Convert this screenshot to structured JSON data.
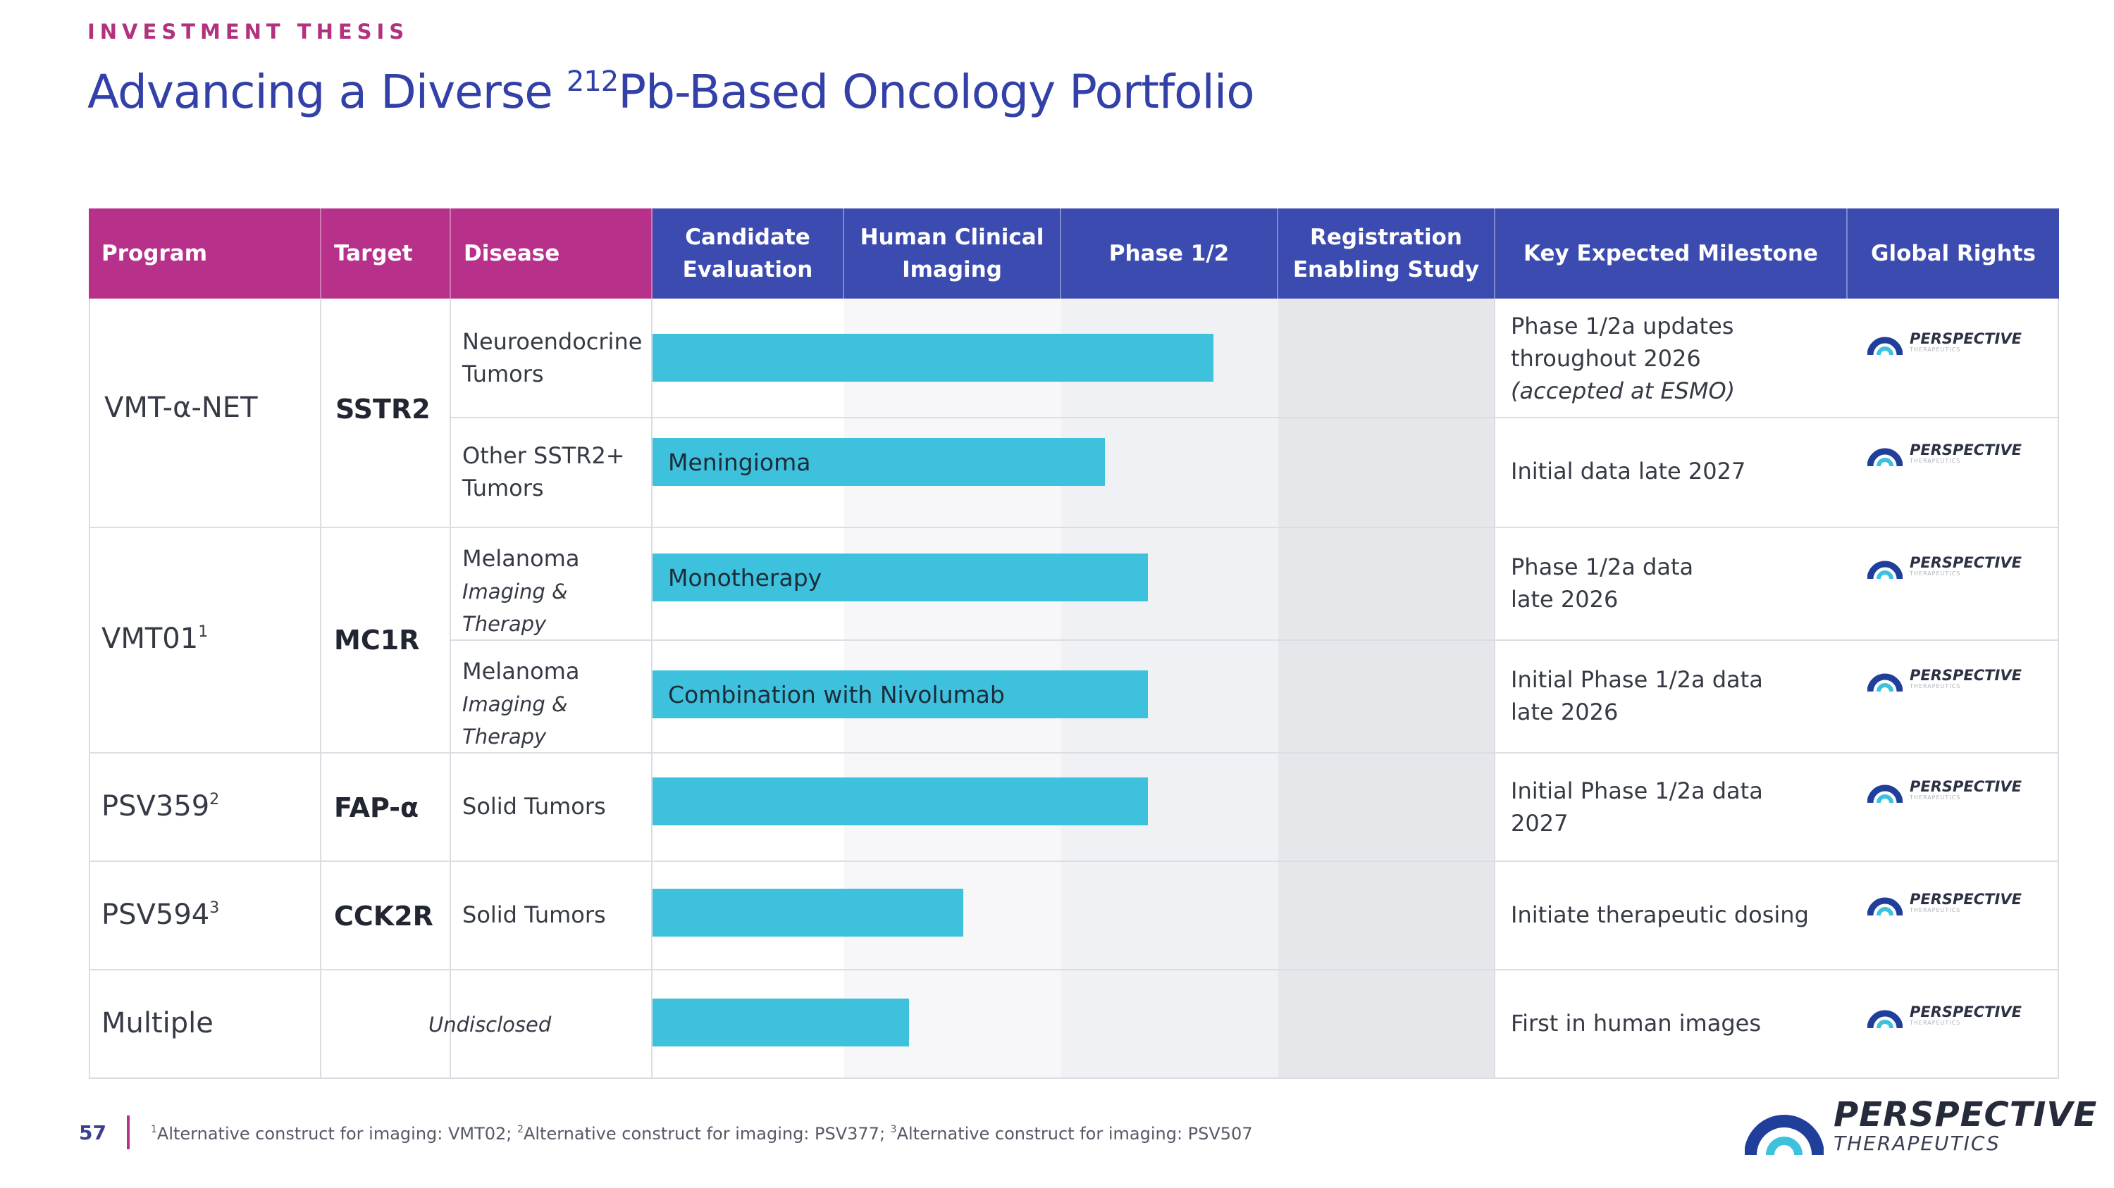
{
  "header": {
    "eyebrow": "INVESTMENT THESIS",
    "title_prefix": "Advancing a Diverse ",
    "title_sup": "212",
    "title_suffix": "Pb-Based Oncology Portfolio"
  },
  "table": {
    "columns": {
      "program": "Program",
      "target": "Target",
      "disease": "Disease",
      "candidate_line1": "Candidate",
      "candidate_line2": "Evaluation",
      "imaging_line1": "Human Clinical",
      "imaging_line2": "Imaging",
      "phase": "Phase 1/2",
      "registration_line1": "Registration",
      "registration_line2": "Enabling Study",
      "milestone": "Key Expected Milestone",
      "rights": "Global Rights"
    },
    "stage_order": [
      "Candidate Evaluation",
      "Human Clinical Imaging",
      "Phase 1/2",
      "Registration Enabling Study"
    ],
    "programs": [
      {
        "name": "VMT-α-NET",
        "sup": "",
        "target": "SSTR2"
      },
      {
        "name": "VMT01",
        "sup": "1",
        "target": "MC1R"
      },
      {
        "name": "PSV359",
        "sup": "2",
        "target": "FAP-α"
      },
      {
        "name": "PSV594",
        "sup": "3",
        "target": "CCK2R"
      },
      {
        "name": "Multiple",
        "sup": "",
        "target": "Undisclosed"
      }
    ],
    "rows": [
      {
        "disease_line1": "Neuroendocrine",
        "disease_line2": "Tumors",
        "bar_label": "",
        "progress_stage": 2.7,
        "milestone_line1": "Phase 1/2a updates",
        "milestone_line2": "throughout 2026",
        "milestone_line3": "(accepted at ESMO)",
        "rights": "PERSPECTIVE"
      },
      {
        "disease_line1": "Other SSTR2+",
        "disease_line2": "Tumors",
        "bar_label": "Meningioma",
        "progress_stage": 2.2,
        "milestone_line1": "Initial data late 2027",
        "rights": "PERSPECTIVE"
      },
      {
        "disease_line1": "Melanoma",
        "disease_sub1": "Imaging &",
        "disease_sub2": "Therapy",
        "bar_label": "Monotherapy",
        "progress_stage": 2.4,
        "milestone_line1": "Phase 1/2a data",
        "milestone_line2": "late 2026",
        "rights": "PERSPECTIVE"
      },
      {
        "disease_line1": "Melanoma",
        "disease_sub1": "Imaging &",
        "disease_sub2": "Therapy",
        "bar_label": "Combination with Nivolumab",
        "progress_stage": 2.4,
        "milestone_line1": "Initial Phase 1/2a data",
        "milestone_line2": "late 2026",
        "rights": "PERSPECTIVE"
      },
      {
        "disease_line1": "Solid Tumors",
        "bar_label": "",
        "progress_stage": 2.4,
        "milestone_line1": "Initial Phase 1/2a data",
        "milestone_line2": "2027",
        "rights": "PERSPECTIVE"
      },
      {
        "disease_line1": "Solid Tumors",
        "bar_label": "",
        "progress_stage": 1.55,
        "milestone_line1": "Initiate therapeutic dosing",
        "rights": "PERSPECTIVE"
      },
      {
        "disease_line1": "",
        "bar_label": "",
        "progress_stage": 1.3,
        "milestone_line1": "First in human images",
        "rights": "PERSPECTIVE"
      }
    ]
  },
  "footer": {
    "page_number": "57",
    "fn1_sup": "1",
    "fn1": "Alternative construct for imaging: VMT02; ",
    "fn2_sup": "2",
    "fn2": "Alternative construct for imaging: PSV377; ",
    "fn3_sup": "3",
    "fn3": "Alternative construct for imaging: PSV507"
  },
  "brand": {
    "name": "PERSPECTIVE",
    "tagline": "THERAPEUTICS",
    "logo_small_tagline": "THERAPEUTICS"
  },
  "colors": {
    "eyebrow": "#b2327f",
    "title": "#3240a8",
    "header_pink": "#b7318b",
    "header_blue": "#3c4bb0",
    "bar": "#3ec1dc"
  }
}
